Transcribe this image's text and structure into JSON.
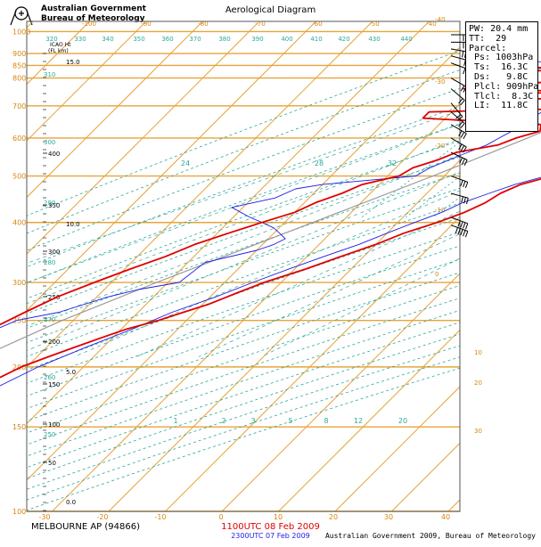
{
  "header": {
    "agency_line1": "Australian Government",
    "agency_line2": "Bureau of Meteorology",
    "title": "Aerological Diagram"
  },
  "info_box": {
    "lines": [
      "PW: 20.4 mm",
      "TT:  29",
      "Parcel:",
      " Ps: 1003hPa",
      " Ts:  16.3C",
      " Ds:   9.8C",
      " Plcl: 909hPa",
      " Tlcl:  8.3C",
      " LI:  11.8C"
    ]
  },
  "footer": {
    "station": "MELBOURNE AP (94866)",
    "utc_primary": "1100UTC 08 Feb 2009",
    "utc_secondary": "2300UTC 07 Feb 2009",
    "copyright": "Australian Government 2009, Bureau of Meteorology"
  },
  "chart_data": {
    "type": "line",
    "title": "Aerological Diagram",
    "axes": {
      "pressure_ticks": [
        "1000",
        "900",
        "850",
        "800",
        "700",
        "600",
        "500",
        "400",
        "300",
        "250",
        "200",
        "150",
        "100"
      ],
      "upper_pressure_ticks": [
        "400",
        "350",
        "300",
        "250",
        "200",
        "150",
        "100",
        "50"
      ],
      "height_label": "ICAO Ht\n(FL  km)",
      "height_ticks": [
        "15.0",
        "10.0",
        "5.0",
        "0.0"
      ],
      "temperature_ticks": [
        "-30",
        "-20",
        "-10",
        "0",
        "10",
        "20",
        "30",
        "40"
      ],
      "top_temperature_ticks": [
        "-100",
        "-90",
        "-80",
        "-70",
        "-60",
        "-50",
        "-40"
      ],
      "right_temperature_ticks": [
        "-40",
        "-30",
        "-20",
        "-10",
        "0",
        "10",
        "20",
        "30",
        "40"
      ],
      "theta_ticks": [
        "320",
        "330",
        "340",
        "350",
        "360",
        "370",
        "380",
        "390",
        "400",
        "410",
        "420",
        "430",
        "440"
      ],
      "theta_left_ticks": [
        "310",
        "300",
        "290",
        "280",
        "270",
        "260",
        "250"
      ],
      "mixing_ratio_ticks": [
        "1",
        "2",
        "3",
        "5",
        "8",
        "12",
        "20",
        "24",
        "28",
        "32"
      ]
    },
    "series": [
      {
        "name": "1100UTC 08 Feb 2009",
        "color": "#e00000",
        "temperature": [
          [
            1000,
            17.5
          ],
          [
            990,
            14
          ],
          [
            975,
            12.5
          ],
          [
            950,
            13.5
          ],
          [
            930,
            12
          ],
          [
            900,
            12.5
          ],
          [
            880,
            12
          ],
          [
            870,
            17
          ],
          [
            860,
            11
          ],
          [
            850,
            8
          ],
          [
            840,
            -28
          ],
          [
            830,
            -29
          ],
          [
            825,
            3
          ],
          [
            820,
            20
          ],
          [
            800,
            22
          ],
          [
            780,
            23
          ],
          [
            760,
            23.5
          ],
          [
            720,
            22
          ],
          [
            700,
            21
          ],
          [
            690,
            19
          ],
          [
            670,
            16
          ],
          [
            660,
            14
          ],
          [
            640,
            13
          ],
          [
            620,
            12
          ],
          [
            590,
            11
          ],
          [
            560,
            8
          ],
          [
            540,
            5
          ],
          [
            510,
            3
          ],
          [
            495,
            -2
          ],
          [
            480,
            -5
          ],
          [
            460,
            -7
          ],
          [
            440,
            -8
          ],
          [
            420,
            -10
          ],
          [
            400,
            -13
          ],
          [
            380,
            -17
          ],
          [
            360,
            -20
          ],
          [
            340,
            -24
          ],
          [
            320,
            -28
          ],
          [
            300,
            -33
          ],
          [
            285,
            -36
          ],
          [
            270,
            -39
          ],
          [
            260,
            -42
          ],
          [
            250,
            -45
          ],
          [
            240,
            -49
          ],
          [
            230,
            -52
          ],
          [
            220,
            -55
          ],
          [
            210,
            -58
          ],
          [
            200,
            -61
          ],
          [
            180,
            -65
          ],
          [
            160,
            -67
          ],
          [
            150,
            -68
          ],
          [
            140,
            -69
          ],
          [
            130,
            -69
          ],
          [
            120,
            -70
          ],
          [
            110,
            -70
          ],
          [
            100,
            -68
          ]
        ],
        "dewpoint": [
          [
            1000,
            16
          ],
          [
            960,
            12
          ],
          [
            930,
            9
          ],
          [
            900,
            6
          ],
          [
            880,
            4
          ],
          [
            860,
            3
          ],
          [
            840,
            -2
          ],
          [
            830,
            -20
          ],
          [
            820,
            -21
          ],
          [
            810,
            -14
          ],
          [
            800,
            -12
          ],
          [
            790,
            -14
          ],
          [
            780,
            -22
          ],
          [
            770,
            -30
          ],
          [
            760,
            -32
          ],
          [
            750,
            -12
          ],
          [
            740,
            -23
          ],
          [
            730,
            -26
          ],
          [
            720,
            -10
          ],
          [
            710,
            -9
          ],
          [
            700,
            -9
          ],
          [
            690,
            -11
          ],
          [
            680,
            -34
          ],
          [
            660,
            -34
          ],
          [
            640,
            -12
          ],
          [
            620,
            -11
          ],
          [
            600,
            -14
          ],
          [
            580,
            -16
          ],
          [
            560,
            -22
          ],
          [
            540,
            -24
          ],
          [
            520,
            -27
          ],
          [
            500,
            -28
          ],
          [
            480,
            -33
          ],
          [
            460,
            -35
          ],
          [
            440,
            -38
          ],
          [
            420,
            -40
          ],
          [
            400,
            -44
          ],
          [
            380,
            -48
          ],
          [
            360,
            -52
          ],
          [
            340,
            -55
          ],
          [
            320,
            -59
          ],
          [
            300,
            -63
          ],
          [
            280,
            -67
          ],
          [
            260,
            -70
          ],
          [
            240,
            -73
          ],
          [
            220,
            -75
          ],
          [
            200,
            -78
          ],
          [
            180,
            -80
          ],
          [
            160,
            -82
          ],
          [
            150,
            -83
          ],
          [
            140,
            -84
          ],
          [
            130,
            -84
          ],
          [
            120,
            -85
          ],
          [
            110,
            -86
          ],
          [
            100,
            -88
          ]
        ]
      },
      {
        "name": "2300UTC 07 Feb 2009",
        "color": "#1c1ce6",
        "temperature": [
          [
            1000,
            21
          ],
          [
            960,
            18
          ],
          [
            930,
            16
          ],
          [
            900,
            14
          ],
          [
            880,
            15
          ],
          [
            860,
            16
          ],
          [
            850,
            17
          ],
          [
            830,
            20
          ],
          [
            800,
            22
          ],
          [
            780,
            21
          ],
          [
            760,
            19
          ],
          [
            740,
            20
          ],
          [
            720,
            22
          ],
          [
            700,
            21
          ],
          [
            680,
            18
          ],
          [
            660,
            15
          ],
          [
            640,
            14
          ],
          [
            600,
            10
          ],
          [
            560,
            5
          ],
          [
            520,
            1
          ],
          [
            500,
            -2
          ],
          [
            480,
            -6
          ],
          [
            460,
            -9
          ],
          [
            440,
            -12
          ],
          [
            420,
            -14
          ],
          [
            400,
            -17
          ],
          [
            380,
            -20
          ],
          [
            360,
            -23
          ],
          [
            340,
            -27
          ],
          [
            320,
            -31
          ],
          [
            300,
            -35
          ],
          [
            280,
            -39
          ],
          [
            260,
            -44
          ],
          [
            240,
            -48
          ],
          [
            220,
            -53
          ],
          [
            200,
            -58
          ],
          [
            180,
            -62
          ],
          [
            160,
            -65
          ],
          [
            150,
            -66
          ],
          [
            130,
            -66
          ],
          [
            110,
            -64
          ],
          [
            100,
            -63
          ]
        ],
        "dewpoint": [
          [
            1000,
            12
          ],
          [
            960,
            9
          ],
          [
            930,
            5
          ],
          [
            900,
            2
          ],
          [
            880,
            -4
          ],
          [
            870,
            -10
          ],
          [
            860,
            -35
          ],
          [
            850,
            -30
          ],
          [
            820,
            -10
          ],
          [
            800,
            -8
          ],
          [
            780,
            -14
          ],
          [
            760,
            -14
          ],
          [
            740,
            -10
          ],
          [
            720,
            -14
          ],
          [
            700,
            -14
          ],
          [
            680,
            -14
          ],
          [
            660,
            -15
          ],
          [
            640,
            -18
          ],
          [
            620,
            -16
          ],
          [
            600,
            -17
          ],
          [
            580,
            -18
          ],
          [
            560,
            -20
          ],
          [
            540,
            -22
          ],
          [
            520,
            -24
          ],
          [
            500,
            -25
          ],
          [
            480,
            -40
          ],
          [
            470,
            -44
          ],
          [
            450,
            -46
          ],
          [
            430,
            -52
          ],
          [
            410,
            -47
          ],
          [
            400,
            -44
          ],
          [
            390,
            -41
          ],
          [
            380,
            -39
          ],
          [
            370,
            -37
          ],
          [
            360,
            -38
          ],
          [
            350,
            -40
          ],
          [
            330,
            -47
          ],
          [
            300,
            -48
          ],
          [
            290,
            -54
          ],
          [
            280,
            -58
          ],
          [
            260,
            -64
          ],
          [
            250,
            -70
          ],
          [
            240,
            -72
          ],
          [
            230,
            -74
          ],
          [
            220,
            -80
          ],
          [
            210,
            -80
          ],
          [
            200,
            -82
          ],
          [
            190,
            -83
          ],
          [
            180,
            -85
          ],
          [
            170,
            -84
          ],
          [
            160,
            -86
          ],
          [
            150,
            -89
          ],
          [
            140,
            -90
          ],
          [
            120,
            -92
          ],
          [
            100,
            -94
          ]
        ]
      }
    ],
    "parcel": {
      "name": "Parcel",
      "color": "#999999",
      "points": [
        [
          1003,
          16.3
        ],
        [
          909,
          8.3
        ],
        [
          850,
          5
        ],
        [
          700,
          -4
        ],
        [
          600,
          -12
        ],
        [
          500,
          -22
        ],
        [
          400,
          -35
        ],
        [
          300,
          -52
        ],
        [
          250,
          -62
        ],
        [
          200,
          -72
        ],
        [
          150,
          -85
        ],
        [
          100,
          -100
        ]
      ]
    },
    "wind_barbs": [
      {
        "p": 985,
        "dir": 270,
        "kt": 25
      },
      {
        "p": 950,
        "dir": 270,
        "kt": 30
      },
      {
        "p": 920,
        "dir": 280,
        "kt": 25
      },
      {
        "p": 890,
        "dir": 285,
        "kt": 20
      },
      {
        "p": 860,
        "dir": 290,
        "kt": 20
      },
      {
        "p": 800,
        "dir": 300,
        "kt": 15
      },
      {
        "p": 760,
        "dir": 310,
        "kt": 15
      },
      {
        "p": 710,
        "dir": 320,
        "kt": 20
      },
      {
        "p": 680,
        "dir": 310,
        "kt": 20
      },
      {
        "p": 640,
        "dir": 300,
        "kt": 25
      },
      {
        "p": 600,
        "dir": 300,
        "kt": 30
      },
      {
        "p": 560,
        "dir": 295,
        "kt": 30
      },
      {
        "p": 500,
        "dir": 290,
        "kt": 30
      },
      {
        "p": 460,
        "dir": 285,
        "kt": 25
      },
      {
        "p": 410,
        "dir": 290,
        "kt": 40
      },
      {
        "p": 395,
        "dir": 290,
        "kt": 45
      }
    ]
  }
}
